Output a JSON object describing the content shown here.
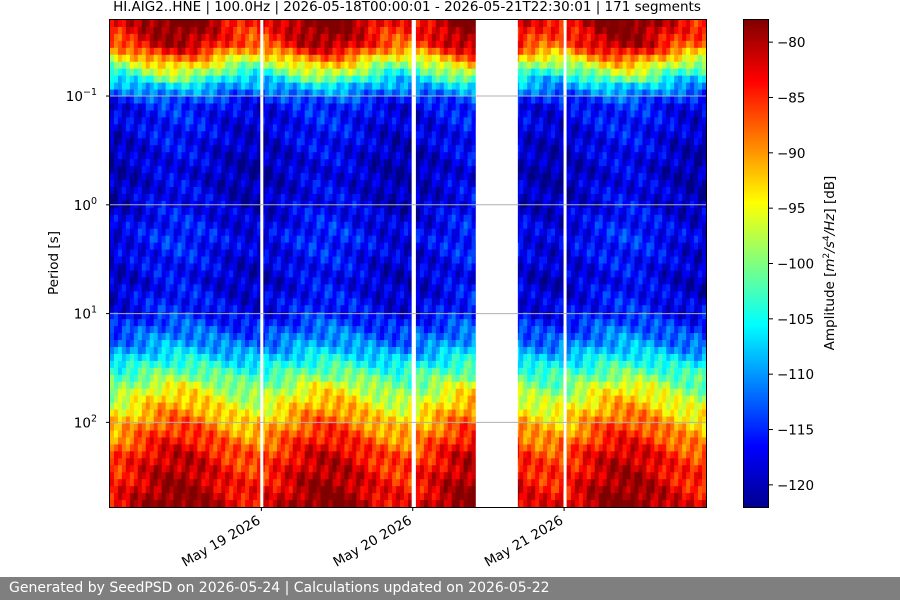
{
  "chart_data": {
    "type": "heatmap",
    "title": "HI.AIG2..HNE | 100.0Hz | 2026-05-18T00:00:01 - 2026-05-21T22:30:01 | 171 segments",
    "ylabel": "Period [s]",
    "colorbar_label_parts": [
      "Amplitude [",
      "m",
      "2",
      "/s",
      "4",
      "/Hz",
      "] [dB]"
    ],
    "y_scale": "log",
    "y_inverted": true,
    "ylim": [
      0.02,
      600
    ],
    "y_ticks": [
      {
        "value": 0.1,
        "base": "10",
        "exp": "−1"
      },
      {
        "value": 1,
        "base": "10",
        "exp": "0"
      },
      {
        "value": 10,
        "base": "10",
        "exp": "1"
      },
      {
        "value": 100,
        "base": "10",
        "exp": "2"
      }
    ],
    "xlim": [
      "2026-05-18T00:00:01",
      "2026-05-21T22:30:01"
    ],
    "x_ticks": [
      {
        "date": "2026-05-19T00:00:00",
        "label": "May 19 2026"
      },
      {
        "date": "2026-05-20T00:00:00",
        "label": "May 20 2026"
      },
      {
        "date": "2026-05-21T00:00:00",
        "label": "May 21 2026"
      }
    ],
    "grid": "horizontal at y ticks",
    "colorbar": {
      "min": -122,
      "max": -78,
      "colormap": "jet",
      "ticks": [
        -80,
        -85,
        -90,
        -95,
        -100,
        -105,
        -110,
        -115,
        -120
      ]
    },
    "data_gaps": [
      {
        "start": "2026-05-18T23:50:00",
        "end": "2026-05-19T00:10:00"
      },
      {
        "start": "2026-05-19T23:50:00",
        "end": "2026-05-20T00:30:00"
      },
      {
        "start": "2026-05-20T10:00:00",
        "end": "2026-05-20T16:40:00"
      },
      {
        "start": "2026-05-20T23:55:00",
        "end": "2026-05-21T00:10:00"
      }
    ],
    "amplitude_profile_db": [
      {
        "period_s": 0.02,
        "db": -80
      },
      {
        "period_s": 0.035,
        "db": -84
      },
      {
        "period_s": 0.05,
        "db": -95
      },
      {
        "period_s": 0.08,
        "db": -108
      },
      {
        "period_s": 0.12,
        "db": -116
      },
      {
        "period_s": 0.5,
        "db": -119
      },
      {
        "period_s": 1,
        "db": -118
      },
      {
        "period_s": 2,
        "db": -116
      },
      {
        "period_s": 5,
        "db": -118
      },
      {
        "period_s": 10,
        "db": -116
      },
      {
        "period_s": 20,
        "db": -110
      },
      {
        "period_s": 50,
        "db": -97
      },
      {
        "period_s": 100,
        "db": -90
      },
      {
        "period_s": 200,
        "db": -84
      },
      {
        "period_s": 600,
        "db": -80
      }
    ]
  },
  "footer": {
    "text": "Generated by SeedPSD on 2026-05-24 | Calculations updated on 2026-05-22"
  }
}
